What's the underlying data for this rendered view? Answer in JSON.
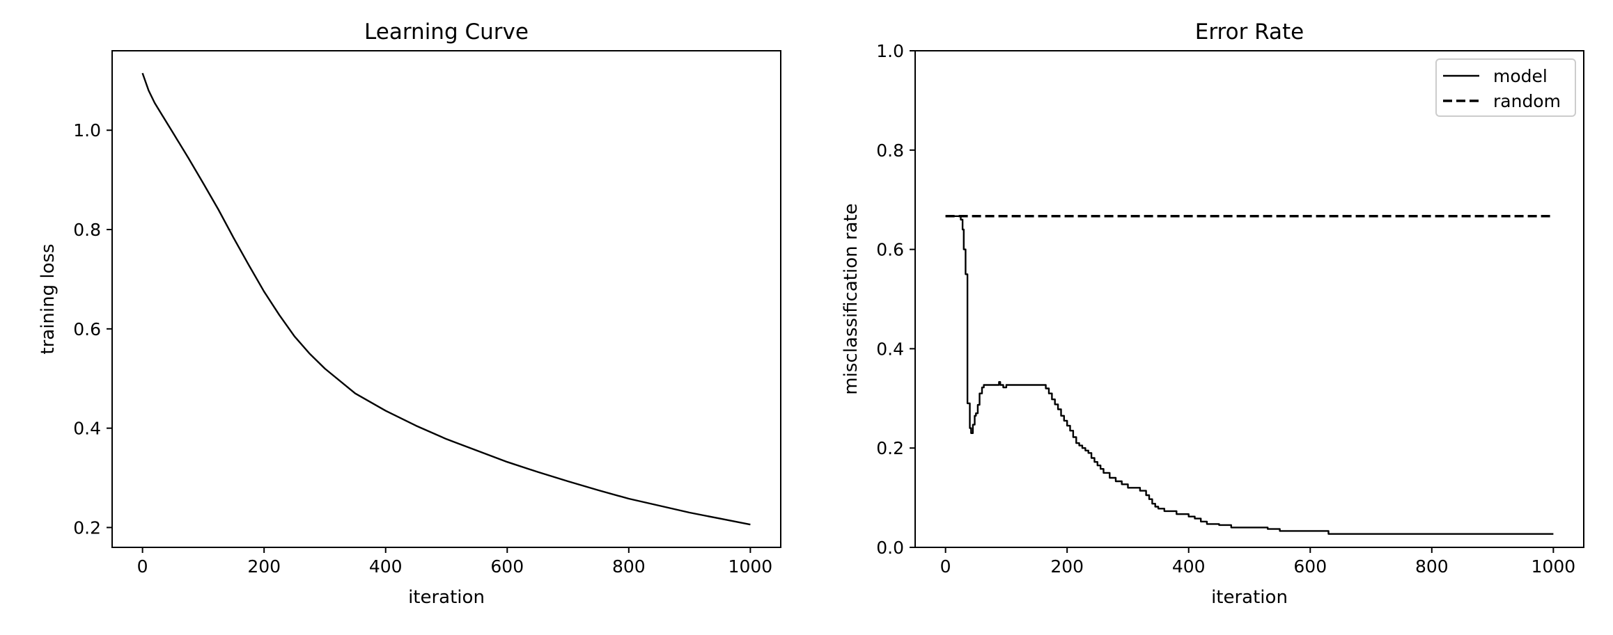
{
  "chart_data": [
    {
      "type": "line",
      "title": "Learning Curve",
      "xlabel": "iteration",
      "ylabel": "training loss",
      "xlim": [
        -50,
        1050
      ],
      "ylim": [
        0.16,
        1.16
      ],
      "xticks": [
        0,
        200,
        400,
        600,
        800,
        1000
      ],
      "xtick_labels": [
        "0",
        "200",
        "400",
        "600",
        "800",
        "1000"
      ],
      "yticks": [
        0.2,
        0.4,
        0.6,
        0.8,
        1.0
      ],
      "ytick_labels": [
        "0.2",
        "0.4",
        "0.6",
        "0.8",
        "1.0"
      ],
      "grid": false,
      "series": [
        {
          "style": "solid",
          "color": "#000000",
          "x": [
            0,
            10,
            20,
            30,
            50,
            75,
            100,
            125,
            150,
            175,
            200,
            225,
            250,
            275,
            300,
            350,
            400,
            450,
            500,
            550,
            600,
            650,
            700,
            750,
            800,
            850,
            900,
            950,
            1000
          ],
          "y": [
            1.115,
            1.08,
            1.055,
            1.035,
            0.995,
            0.945,
            0.893,
            0.84,
            0.783,
            0.728,
            0.675,
            0.628,
            0.585,
            0.55,
            0.52,
            0.47,
            0.435,
            0.405,
            0.378,
            0.355,
            0.332,
            0.312,
            0.293,
            0.275,
            0.258,
            0.244,
            0.23,
            0.218,
            0.206
          ]
        }
      ]
    },
    {
      "type": "line",
      "title": "Error Rate",
      "xlabel": "iteration",
      "ylabel": "misclassification rate",
      "xlim": [
        -50,
        1050
      ],
      "ylim": [
        0.0,
        1.0
      ],
      "xticks": [
        0,
        200,
        400,
        600,
        800,
        1000
      ],
      "xtick_labels": [
        "0",
        "200",
        "400",
        "600",
        "800",
        "1000"
      ],
      "yticks": [
        0.0,
        0.2,
        0.4,
        0.6,
        0.8,
        1.0
      ],
      "ytick_labels": [
        "0.0",
        "0.2",
        "0.4",
        "0.6",
        "0.8",
        "1.0"
      ],
      "grid": false,
      "legend": "top-right",
      "series": [
        {
          "name": "model",
          "style": "solid",
          "color": "#000000",
          "x": [
            0,
            20,
            25,
            28,
            30,
            33,
            36,
            40,
            42,
            45,
            48,
            50,
            53,
            56,
            60,
            63,
            68,
            75,
            85,
            88,
            90,
            95,
            100,
            110,
            140,
            165,
            170,
            175,
            180,
            185,
            190,
            195,
            200,
            205,
            210,
            215,
            220,
            225,
            230,
            235,
            240,
            245,
            250,
            255,
            260,
            270,
            280,
            290,
            300,
            320,
            330,
            335,
            340,
            345,
            350,
            360,
            380,
            400,
            410,
            420,
            430,
            450,
            470,
            500,
            530,
            550,
            600,
            630,
            700,
            800,
            900,
            1000
          ],
          "y": [
            0.667,
            0.667,
            0.66,
            0.64,
            0.6,
            0.55,
            0.29,
            0.24,
            0.23,
            0.247,
            0.265,
            0.27,
            0.287,
            0.31,
            0.322,
            0.327,
            0.327,
            0.327,
            0.327,
            0.333,
            0.327,
            0.322,
            0.327,
            0.327,
            0.327,
            0.32,
            0.31,
            0.298,
            0.288,
            0.278,
            0.265,
            0.255,
            0.245,
            0.235,
            0.222,
            0.21,
            0.205,
            0.2,
            0.195,
            0.19,
            0.18,
            0.172,
            0.165,
            0.158,
            0.15,
            0.14,
            0.133,
            0.127,
            0.12,
            0.114,
            0.105,
            0.097,
            0.088,
            0.082,
            0.078,
            0.073,
            0.067,
            0.062,
            0.058,
            0.052,
            0.047,
            0.045,
            0.04,
            0.04,
            0.037,
            0.033,
            0.033,
            0.027,
            0.027,
            0.027,
            0.027,
            0.027
          ],
          "step": true
        },
        {
          "name": "random",
          "style": "dashed",
          "color": "#000000",
          "x": [
            0,
            1000
          ],
          "y": [
            0.667,
            0.667
          ]
        }
      ]
    }
  ]
}
